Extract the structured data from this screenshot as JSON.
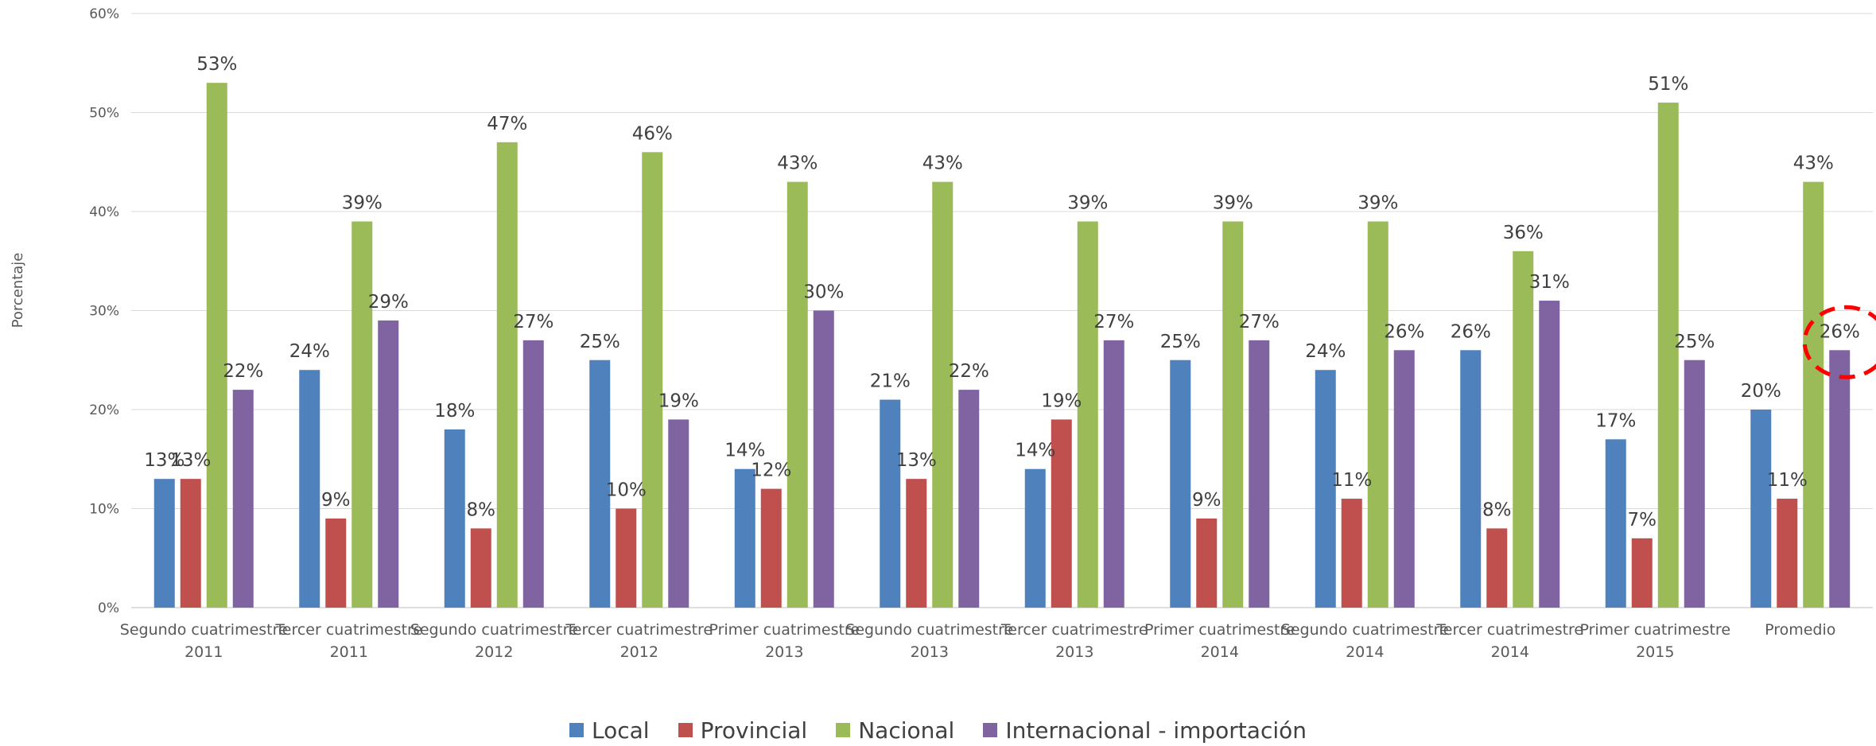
{
  "colors": {
    "local": "#4f81bd",
    "provincial": "#c0504d",
    "nacional": "#9bbb59",
    "internacional": "#8064a2",
    "highlight": "#ff0000"
  },
  "chart_data": {
    "type": "bar",
    "ylabel": "Porcentaje",
    "ylim": [
      0,
      60
    ],
    "yticks": [
      "0%",
      "10%",
      "20%",
      "30%",
      "40%",
      "50%",
      "60%"
    ],
    "categories": [
      [
        "Segundo cuatrimestre",
        "2011"
      ],
      [
        "Tercer cuatrimestre",
        "2011"
      ],
      [
        "Segundo cuatrimestre",
        "2012"
      ],
      [
        "Tercer cuatrimestre",
        "2012"
      ],
      [
        "Primer cuatrimestre",
        "2013"
      ],
      [
        "Segundo cuatrimestre",
        "2013"
      ],
      [
        "Tercer cuatrimestre",
        "2013"
      ],
      [
        "Primer cuatrimestre",
        "2014"
      ],
      [
        "Segundo cuatrimestre",
        "2014"
      ],
      [
        "Tercer cuatrimestre",
        "2014"
      ],
      [
        "Primer cuatrimestre",
        "2015"
      ],
      [
        "Promedio"
      ]
    ],
    "series": [
      {
        "name": "Local",
        "values": [
          13,
          24,
          18,
          25,
          14,
          21,
          14,
          25,
          24,
          26,
          17,
          20
        ],
        "labels": [
          "13%",
          "24%",
          "18%",
          "25%",
          "14%",
          "21%",
          "14%",
          "25%",
          "24%",
          "26%",
          "17%",
          "20%"
        ]
      },
      {
        "name": "Provincial",
        "values": [
          13,
          9,
          8,
          10,
          12,
          13,
          19,
          9,
          11,
          8,
          7,
          11
        ],
        "labels": [
          "13%",
          "9%",
          "8%",
          "10%",
          "12%",
          "13%",
          "19%",
          "9%",
          "11%",
          "8%",
          "7%",
          "11%"
        ]
      },
      {
        "name": "Nacional",
        "values": [
          53,
          39,
          47,
          46,
          43,
          43,
          39,
          39,
          39,
          36,
          51,
          43
        ],
        "labels": [
          "53%",
          "39%",
          "47%",
          "46%",
          "43%",
          "43%",
          "39%",
          "39%",
          "39%",
          "36%",
          "51%",
          "43%"
        ]
      },
      {
        "name": "Internacional - importación",
        "values": [
          22,
          29,
          27,
          19,
          30,
          22,
          27,
          27,
          26,
          31,
          25,
          26
        ],
        "labels": [
          "22%",
          "29%",
          "27%",
          "19%",
          "30%",
          "22%",
          "27%",
          "27%",
          "26%",
          "31%",
          "25%",
          "26%"
        ]
      }
    ],
    "grid": true,
    "legend_position": "bottom",
    "annotation": {
      "type": "dashed-circle",
      "category_index": 11,
      "series_index": 3
    }
  }
}
